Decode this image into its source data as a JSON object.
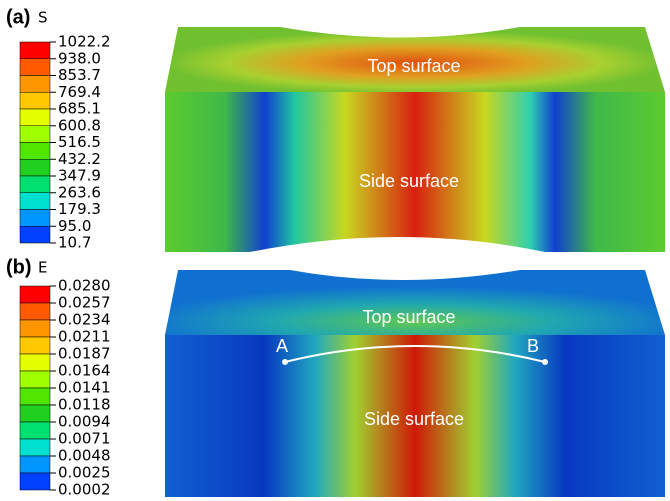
{
  "panels": [
    {
      "label": "(a)",
      "variable": "S",
      "legend": [
        "1022.2",
        "938.0",
        "853.7",
        "769.4",
        "685.1",
        "600.8",
        "516.5",
        "432.2",
        "347.9",
        "263.6",
        "179.3",
        "95.0",
        "10.7"
      ],
      "annotations": [
        "Top surface",
        "Side surface"
      ]
    },
    {
      "label": "(b)",
      "variable": "E",
      "legend": [
        "0.0280",
        "0.0257",
        "0.0234",
        "0.0211",
        "0.0187",
        "0.0164",
        "0.0141",
        "0.0118",
        "0.0094",
        "0.0071",
        "0.0048",
        "0.0025",
        "0.0002"
      ],
      "annotations": [
        "Top surface",
        "Side surface",
        "A",
        "B"
      ]
    }
  ]
}
